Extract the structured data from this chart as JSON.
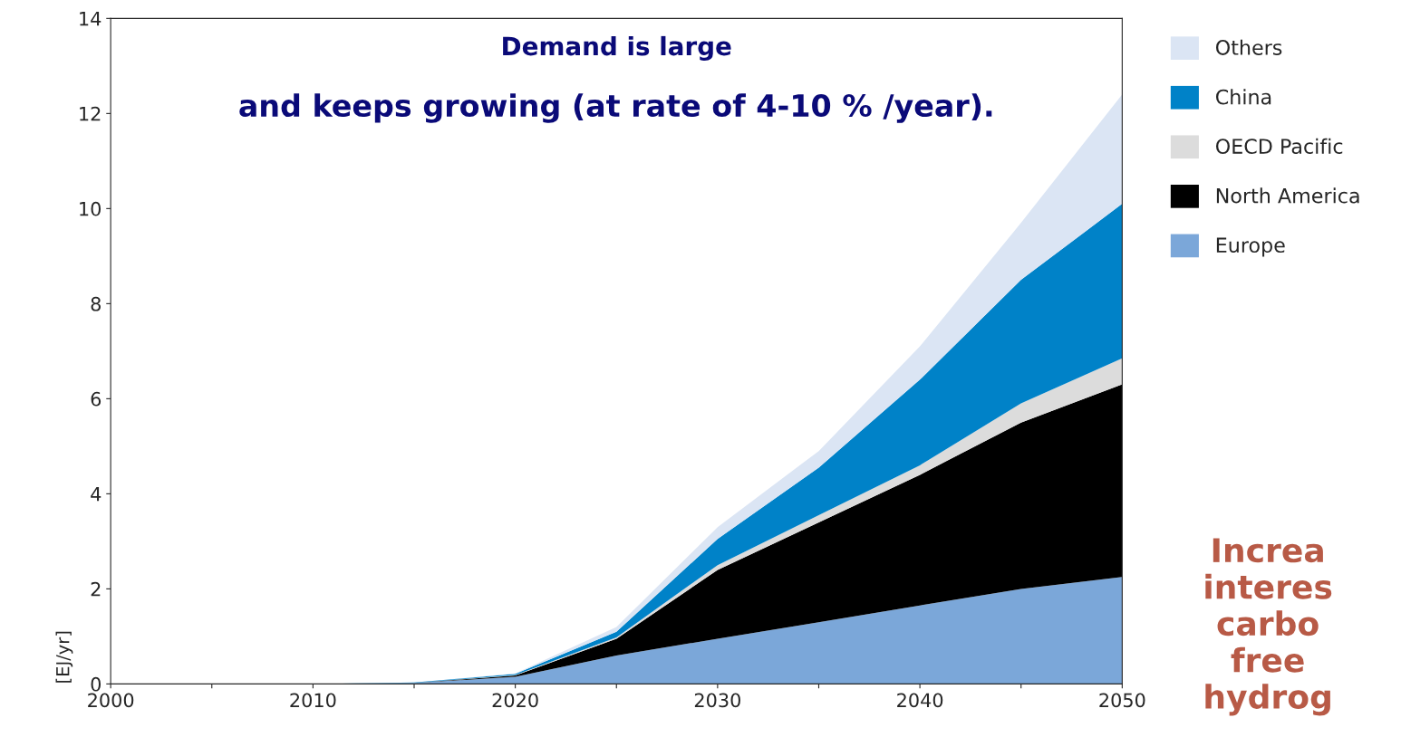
{
  "chart_data": {
    "type": "area",
    "stacked": true,
    "ylabel": "[EJ/yr]",
    "x": [
      2000,
      2005,
      2010,
      2015,
      2020,
      2025,
      2030,
      2035,
      2040,
      2045,
      2050
    ],
    "series": [
      {
        "name": "Europe",
        "color": "#7ba7d9",
        "values": [
          0,
          0,
          0,
          0.02,
          0.15,
          0.6,
          0.95,
          1.3,
          1.65,
          2.0,
          2.25
        ]
      },
      {
        "name": "North America",
        "color": "#000000",
        "values": [
          0,
          0,
          0,
          0,
          0.03,
          0.35,
          1.45,
          2.1,
          2.75,
          3.5,
          4.05
        ]
      },
      {
        "name": "OECD Pacific",
        "color": "#dcdcdc",
        "values": [
          0,
          0,
          0,
          0,
          0.01,
          0.03,
          0.1,
          0.15,
          0.2,
          0.4,
          0.55
        ]
      },
      {
        "name": "China",
        "color": "#0082c8",
        "values": [
          0,
          0,
          0,
          0.01,
          0.02,
          0.12,
          0.55,
          1.0,
          1.8,
          2.6,
          3.25
        ]
      },
      {
        "name": "Others",
        "color": "#dbe5f4",
        "values": [
          0,
          0,
          0,
          0,
          0.01,
          0.1,
          0.25,
          0.35,
          0.7,
          1.2,
          2.3
        ]
      }
    ],
    "xlim": [
      2000,
      2050
    ],
    "xticks": [
      2000,
      {
        "value": 2005,
        "label": null
      },
      2010,
      {
        "value": 2015,
        "label": null
      },
      2020,
      {
        "value": 2025,
        "label": null
      },
      2030,
      {
        "value": 2035,
        "label": null
      },
      2040,
      {
        "value": 2045,
        "label": null
      },
      2050
    ],
    "ylim": [
      0,
      14
    ],
    "yticks": [
      0,
      2,
      4,
      6,
      8,
      10,
      12,
      14
    ],
    "grid": false,
    "legend": "right",
    "annotations": [
      "Demand is large",
      "and keeps growing (at rate of 4-10 % /year).",
      "Increa\ninteres\ncarbo\nfree\nhydrog"
    ]
  }
}
